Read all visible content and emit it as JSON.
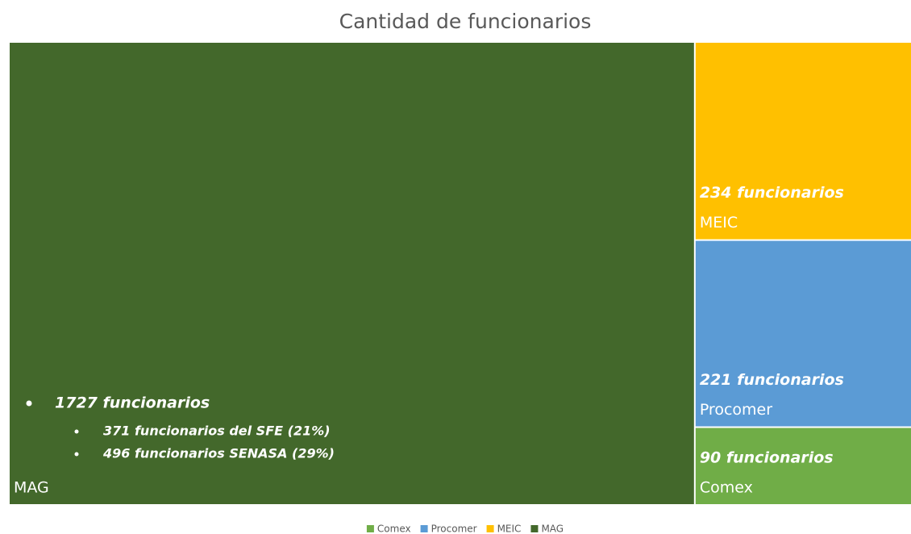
{
  "chart_data": {
    "type": "treemap",
    "title": "Cantidad de funcionarios",
    "categories": [
      "Comex",
      "Procomer",
      "MEIC",
      "MAG"
    ],
    "values": [
      90,
      221,
      234,
      1727
    ],
    "value_labels": [
      "90 funcionarios",
      "221 funcionarios",
      "234 funcionarios",
      "1727 funcionarios"
    ],
    "colors": [
      "#70ad47",
      "#5b9bd5",
      "#ffc000",
      "#43682b"
    ],
    "annotations": [
      "371 funcionarios del SFE (21%)",
      "496 funcionarios SENASA (29%)"
    ],
    "legend": "bottom"
  }
}
